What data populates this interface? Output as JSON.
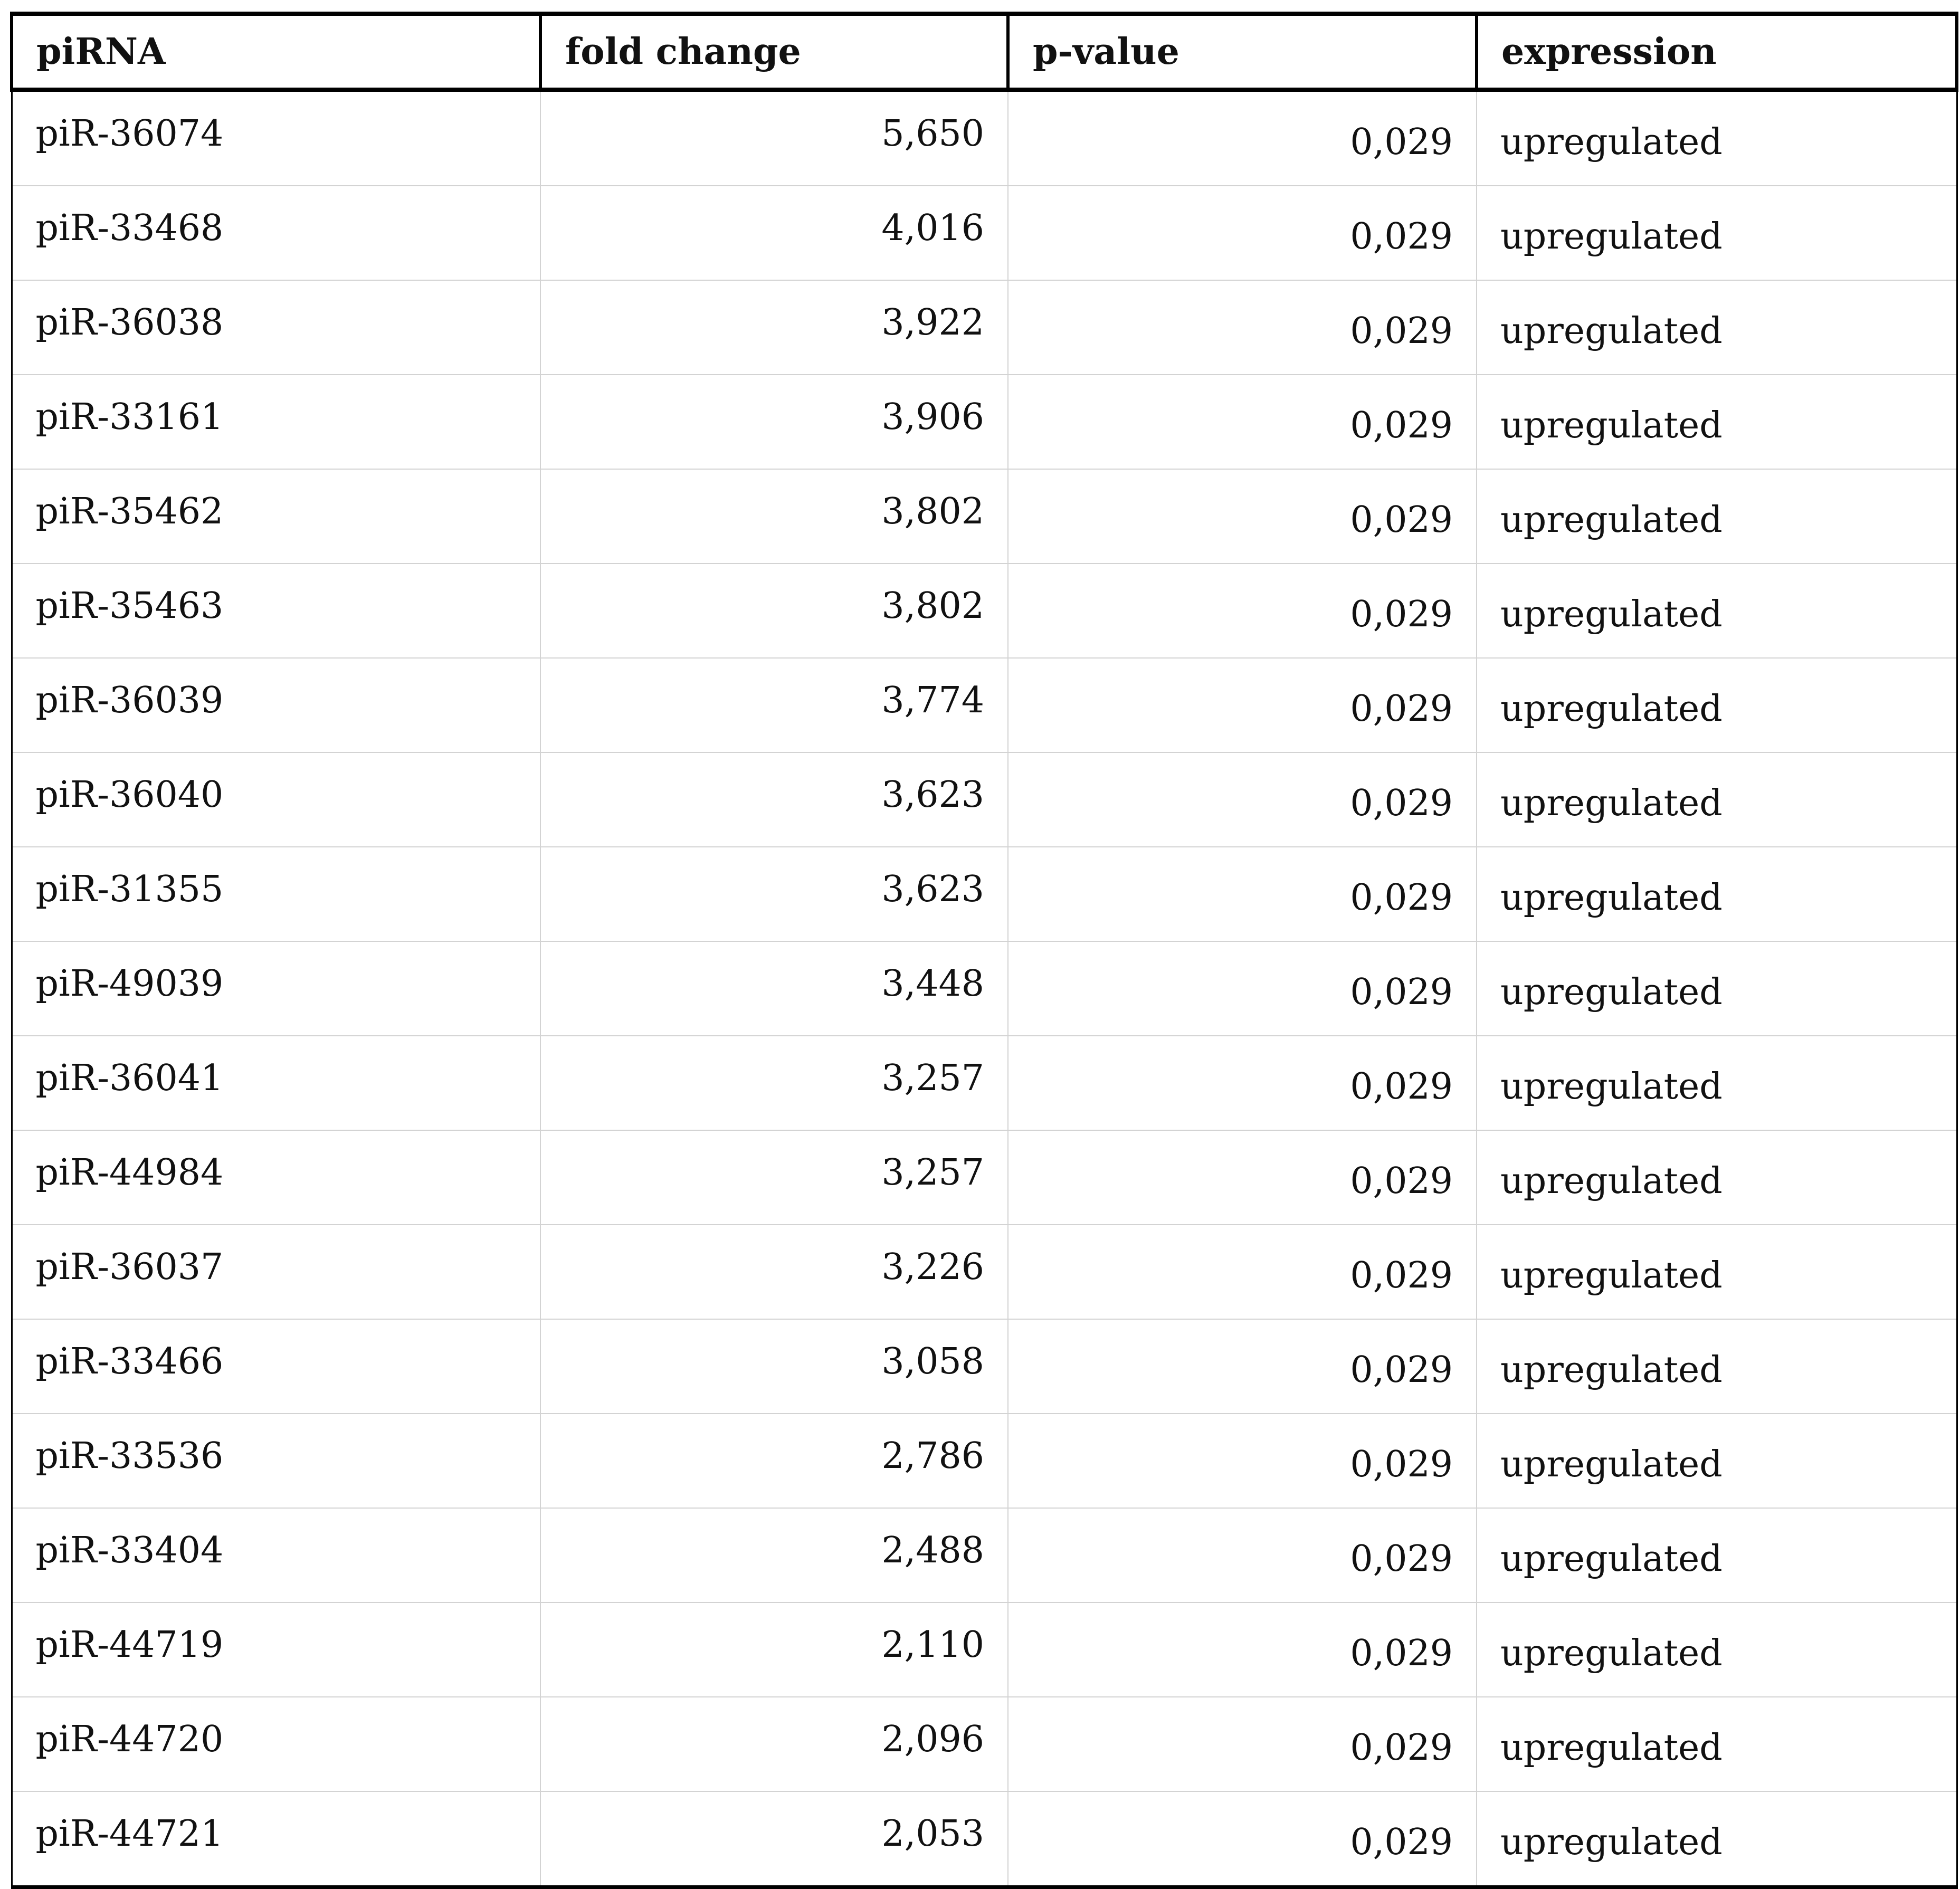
{
  "table": {
    "headers": [
      "piRNA",
      "fold change",
      "p-value",
      "expression"
    ],
    "rows": [
      [
        "piR-36074",
        "5,650",
        "0,029",
        "upregulated"
      ],
      [
        "piR-33468",
        "4,016",
        "0,029",
        "upregulated"
      ],
      [
        "piR-36038",
        "3,922",
        "0,029",
        "upregulated"
      ],
      [
        "piR-33161",
        "3,906",
        "0,029",
        "upregulated"
      ],
      [
        "piR-35462",
        "3,802",
        "0,029",
        "upregulated"
      ],
      [
        "piR-35463",
        "3,802",
        "0,029",
        "upregulated"
      ],
      [
        "piR-36039",
        "3,774",
        "0,029",
        "upregulated"
      ],
      [
        "piR-36040",
        "3,623",
        "0,029",
        "upregulated"
      ],
      [
        "piR-31355",
        "3,623",
        "0,029",
        "upregulated"
      ],
      [
        "piR-49039",
        "3,448",
        "0,029",
        "upregulated"
      ],
      [
        "piR-36041",
        "3,257",
        "0,029",
        "upregulated"
      ],
      [
        "piR-44984",
        "3,257",
        "0,029",
        "upregulated"
      ],
      [
        "piR-36037",
        "3,226",
        "0,029",
        "upregulated"
      ],
      [
        "piR-33466",
        "3,058",
        "0,029",
        "upregulated"
      ],
      [
        "piR-33536",
        "2,786",
        "0,029",
        "upregulated"
      ],
      [
        "piR-33404",
        "2,488",
        "0,029",
        "upregulated"
      ],
      [
        "piR-44719",
        "2,110",
        "0,029",
        "upregulated"
      ],
      [
        "piR-44720",
        "2,096",
        "0,029",
        "upregulated"
      ],
      [
        "piR-44721",
        "2,053",
        "0,029",
        "upregulated"
      ]
    ]
  }
}
